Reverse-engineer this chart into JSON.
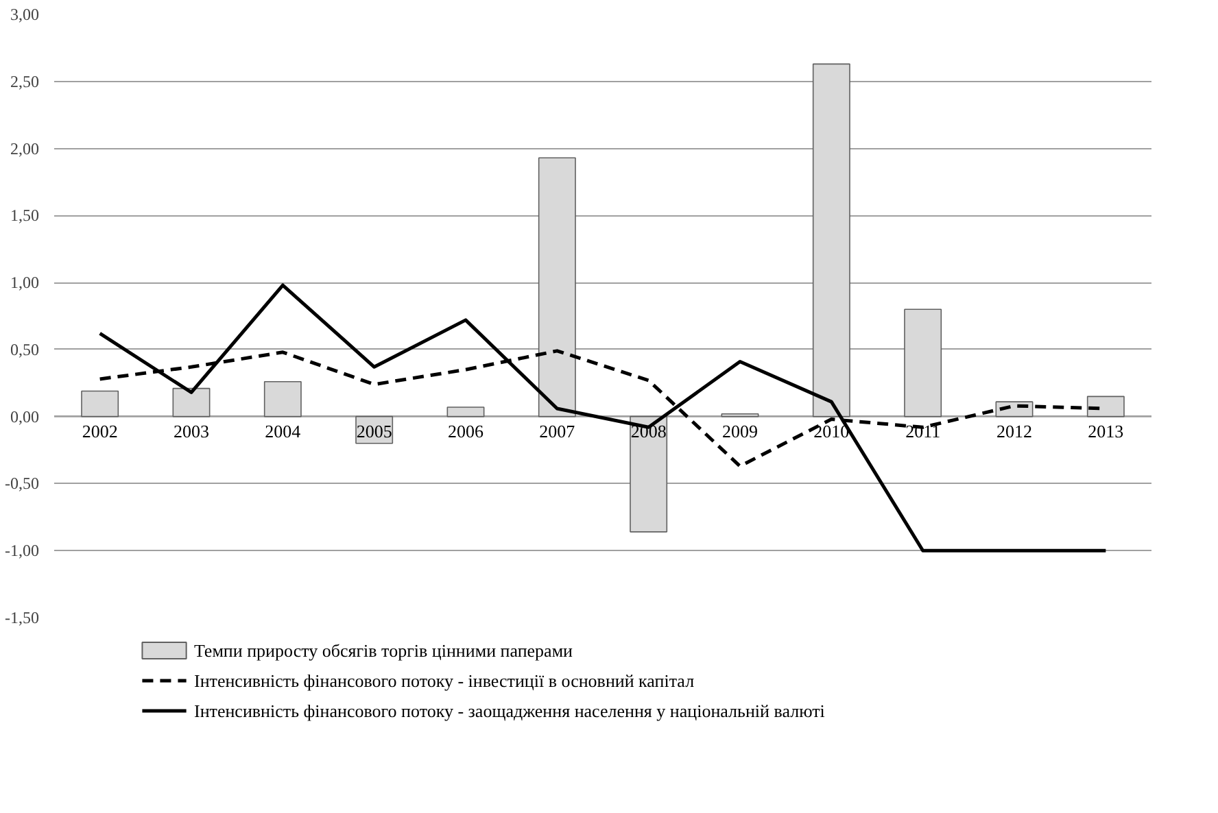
{
  "chart_data": {
    "type": "bar",
    "categories": [
      "2002",
      "2003",
      "2004",
      "2005",
      "2006",
      "2007",
      "2008",
      "2009",
      "2010",
      "2011",
      "2012",
      "2013"
    ],
    "series": [
      {
        "name": "Темпи приросту обсягів торгів цінними паперами",
        "color": "#d9d9d9",
        "values": [
          0.19,
          0.21,
          0.26,
          -0.2,
          0.07,
          1.93,
          -0.86,
          0.02,
          2.63,
          0.8,
          0.11,
          0.15
        ]
      },
      {
        "name": "Інтенсивність фінансового потоку - інвестиції в основний капітал",
        "type": "line",
        "line_style": "dashed",
        "color": "#000000",
        "values": [
          0.28,
          0.37,
          0.48,
          0.24,
          0.35,
          0.49,
          0.27,
          -0.37,
          -0.02,
          -0.08,
          0.08,
          0.06
        ]
      },
      {
        "name": "Інтенсивність фінансового потоку - заощадження населення у національній валюті",
        "type": "line",
        "line_style": "solid",
        "color": "#000000",
        "values": [
          0.62,
          0.18,
          0.98,
          0.37,
          0.72,
          0.06,
          -0.08,
          0.41,
          0.11,
          -1.0,
          -1.0,
          -1.0
        ]
      }
    ],
    "ylim": [
      -1.5,
      3.0
    ],
    "yticks": [
      {
        "value": -1.5,
        "label": "-1,50"
      },
      {
        "value": -1.0,
        "label": "-1,00"
      },
      {
        "value": -0.5,
        "label": "-0,50"
      },
      {
        "value": 0,
        "label": "0,00"
      },
      {
        "value": 0.5,
        "label": "0,50"
      },
      {
        "value": 1.0,
        "label": "1,00"
      },
      {
        "value": 1.5,
        "label": "1,50"
      },
      {
        "value": 2.0,
        "label": "2,00"
      },
      {
        "value": 2.5,
        "label": "2,50"
      },
      {
        "value": 3.0,
        "label": "3,00"
      }
    ],
    "grid": "y",
    "legend": "bottom"
  }
}
